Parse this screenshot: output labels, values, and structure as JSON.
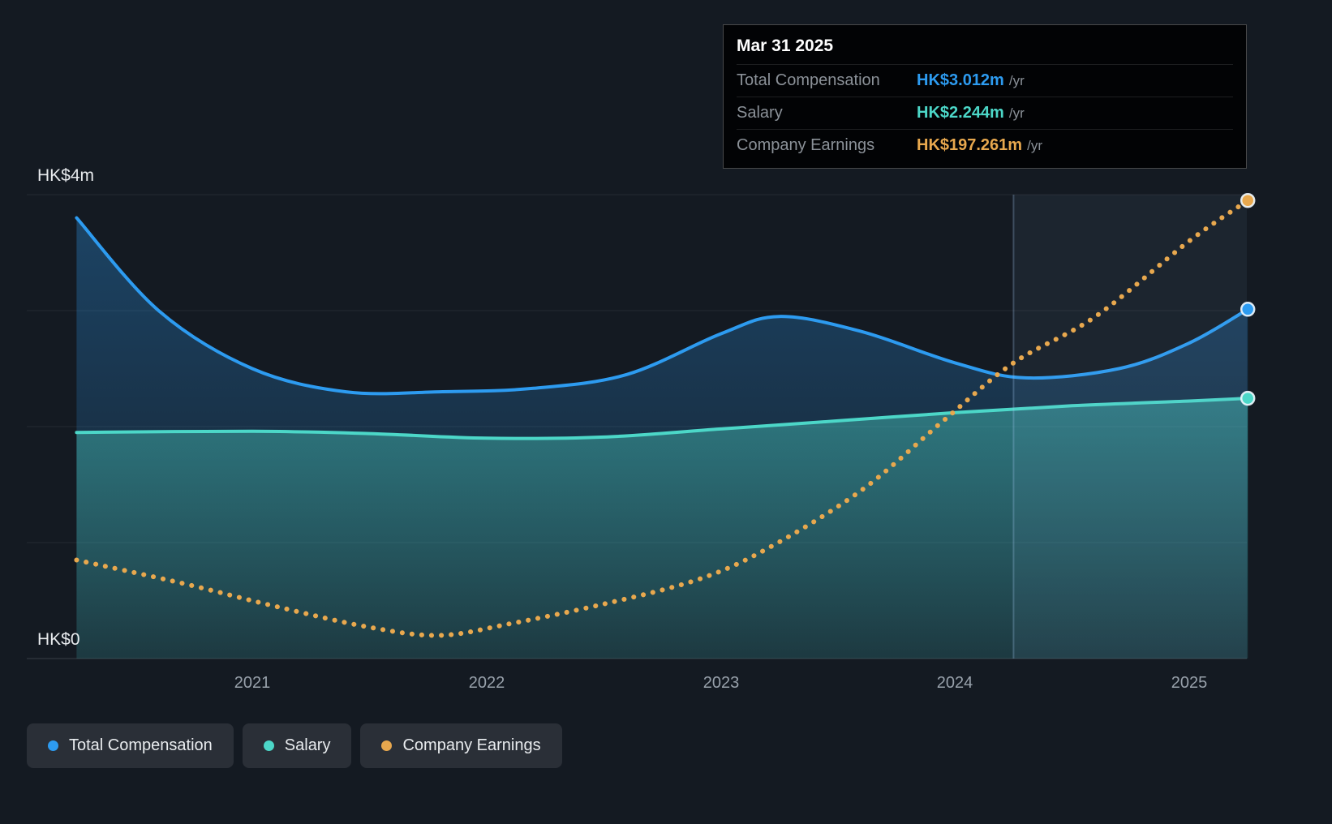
{
  "background": "#141a22",
  "tooltip": {
    "date": "Mar 31 2025",
    "rows": [
      {
        "label": "Total Compensation",
        "value": "HK$3.012m",
        "suffix": "/yr",
        "color": "#2d9bf0"
      },
      {
        "label": "Salary",
        "value": "HK$2.244m",
        "suffix": "/yr",
        "color": "#4cd7c8"
      },
      {
        "label": "Company Earnings",
        "value": "HK$197.261m",
        "suffix": "/yr",
        "color": "#e8a84e"
      }
    ]
  },
  "axis": {
    "y_top_label": "HK$4m",
    "y_bottom_label": "HK$0",
    "x_labels": [
      "2021",
      "2022",
      "2023",
      "2024",
      "2025"
    ]
  },
  "legend": [
    {
      "label": "Total Compensation",
      "color": "#2d9bf0"
    },
    {
      "label": "Salary",
      "color": "#4cd7c8"
    },
    {
      "label": "Company Earnings",
      "color": "#e8a84e"
    }
  ],
  "chart_data": {
    "type": "line",
    "x_unit": "year",
    "xlim": [
      2020.25,
      2025.25
    ],
    "ylim": [
      0,
      4
    ],
    "y_tick_labels": [
      "HK$0",
      "HK$4m"
    ],
    "x_ticks": [
      "2021",
      "2022",
      "2023",
      "2024",
      "2025"
    ],
    "grid": true,
    "legend_position": "bottom-left",
    "highlight_region": {
      "from": 2024.25,
      "to": 2025.25
    },
    "series": [
      {
        "name": "Total Compensation",
        "color": "#2d9bf0",
        "style": "solid",
        "area": true,
        "unit": "HK$m per year",
        "latest": {
          "date": "Mar 31 2025",
          "value": "HK$3.012m /yr"
        },
        "x": [
          2020.25,
          2020.6,
          2021,
          2021.4,
          2021.8,
          2022.2,
          2022.6,
          2023,
          2023.25,
          2023.6,
          2024,
          2024.3,
          2024.7,
          2025,
          2025.25
        ],
        "y": [
          3.8,
          3.0,
          2.5,
          2.3,
          2.3,
          2.33,
          2.45,
          2.8,
          2.95,
          2.82,
          2.55,
          2.42,
          2.5,
          2.72,
          3.012
        ]
      },
      {
        "name": "Salary",
        "color": "#4cd7c8",
        "style": "solid",
        "area": true,
        "unit": "HK$m per year",
        "latest": {
          "date": "Mar 31 2025",
          "value": "HK$2.244m /yr"
        },
        "x": [
          2020.25,
          2021,
          2021.5,
          2022,
          2022.5,
          2023,
          2023.5,
          2024,
          2024.5,
          2025,
          2025.25
        ],
        "y": [
          1.95,
          1.96,
          1.94,
          1.9,
          1.91,
          1.98,
          2.05,
          2.12,
          2.18,
          2.22,
          2.244
        ]
      },
      {
        "name": "Company Earnings",
        "color": "#e8a84e",
        "style": "dotted",
        "area": false,
        "unit": "HK$m per year",
        "scale": "separate hidden axis; plotted y values are chart-axis units, not HK$m",
        "latest": {
          "date": "Mar 31 2025",
          "value": "HK$197.261m /yr"
        },
        "x": [
          2020.25,
          2020.7,
          2021.1,
          2021.5,
          2021.8,
          2022.1,
          2022.5,
          2022.9,
          2023.2,
          2023.6,
          2023.95,
          2024.25,
          2024.6,
          2025,
          2025.25
        ],
        "y": [
          0.85,
          0.65,
          0.45,
          0.27,
          0.2,
          0.3,
          0.47,
          0.68,
          0.95,
          1.45,
          2.05,
          2.55,
          2.95,
          3.6,
          3.95
        ]
      }
    ]
  }
}
